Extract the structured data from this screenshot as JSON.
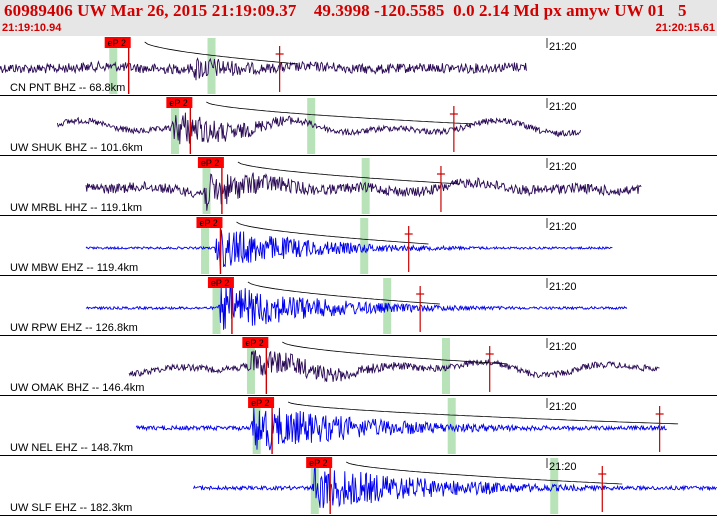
{
  "header": {
    "title": "60989406 UW Mar 26, 2015 21:19:09.37    49.3998 -120.5585  0.0 2.14 Md px amyw UW 01   5",
    "start_time": "21:19:10.94",
    "end_time": "21:20:15.61"
  },
  "colors": {
    "header_text": "#d10000",
    "trace_dark": "#2a0a55",
    "trace_blue": "#0000ee",
    "pick_fill": "#ff0000",
    "pick_label": "#000000",
    "window_band": "#b8e2b8",
    "curve": "#000000",
    "pick_line": "#cc0000"
  },
  "chart_data": {
    "type": "seismogram",
    "time_range": [
      "21:19:10.94",
      "21:20:15.61"
    ],
    "minute_label": "21:20",
    "traces": [
      {
        "label": "CN PNT BHZ -- 68.8km",
        "pick": "eP 2",
        "color": "dark",
        "amp": 14,
        "noise": 0.35,
        "start": 0.0,
        "end": 0.735,
        "pick_t": 0.146,
        "end_win_t": 0.295,
        "event_t": 0.268,
        "coda_t": 0.39,
        "lowfreq": 0.2,
        "burst": 1
      },
      {
        "label": "UW SHUK BHZ -- 101.6km",
        "pick": "eP 2",
        "color": "dark",
        "amp": 20,
        "noise": 0.15,
        "start": 0.08,
        "end": 0.81,
        "pick_t": 0.232,
        "end_win_t": 0.434,
        "event_t": 0.24,
        "coda_t": 0.633,
        "lowfreq": 0.7,
        "burst": 1
      },
      {
        "label": "UW MRBL HHZ -- 119.1km",
        "pick": "eP 2",
        "color": "dark",
        "amp": 20,
        "noise": 0.25,
        "start": 0.12,
        "end": 0.895,
        "pick_t": 0.276,
        "end_win_t": 0.51,
        "event_t": 0.283,
        "coda_t": 0.615,
        "lowfreq": 0.5,
        "burst": 1
      },
      {
        "label": "UW MBW EHZ -- 119.4km",
        "pick": "eP 2",
        "color": "blue",
        "amp": 23,
        "noise": 0.05,
        "start": 0.12,
        "end": 0.855,
        "pick_t": 0.274,
        "end_win_t": 0.508,
        "event_t": 0.3,
        "coda_t": 0.57,
        "lowfreq": 0.0,
        "burst": 1
      },
      {
        "label": "UW RPW EHZ -- 126.8km",
        "pick": "eP 2",
        "color": "blue",
        "amp": 26,
        "noise": 0.05,
        "start": 0.12,
        "end": 0.875,
        "pick_t": 0.29,
        "end_win_t": 0.54,
        "event_t": 0.305,
        "coda_t": 0.586,
        "lowfreq": 0.0,
        "burst": 1
      },
      {
        "label": "UW OMAK BHZ -- 146.4km",
        "pick": "eP 2",
        "color": "dark",
        "amp": 16,
        "noise": 0.2,
        "start": 0.18,
        "end": 0.92,
        "pick_t": 0.338,
        "end_win_t": 0.622,
        "event_t": 0.345,
        "coda_t": 0.683,
        "lowfreq": 0.85,
        "burst": 1
      },
      {
        "label": "UW NEL EHZ -- 148.7km",
        "pick": "eP 2",
        "color": "blue",
        "amp": 26,
        "noise": 0.08,
        "start": 0.19,
        "end": 0.93,
        "pick_t": 0.346,
        "end_win_t": 0.63,
        "event_t": 0.35,
        "coda_t": 0.92,
        "lowfreq": 0.0,
        "burst": 1
      },
      {
        "label": "UW SLF EHZ -- 182.3km",
        "pick": "eP 2",
        "color": "blue",
        "amp": 24,
        "noise": 0.08,
        "start": 0.27,
        "end": 1.0,
        "pick_t": 0.427,
        "end_win_t": 0.773,
        "event_t": 0.435,
        "coda_t": 0.84,
        "lowfreq": 0.0,
        "burst": 1
      }
    ]
  }
}
